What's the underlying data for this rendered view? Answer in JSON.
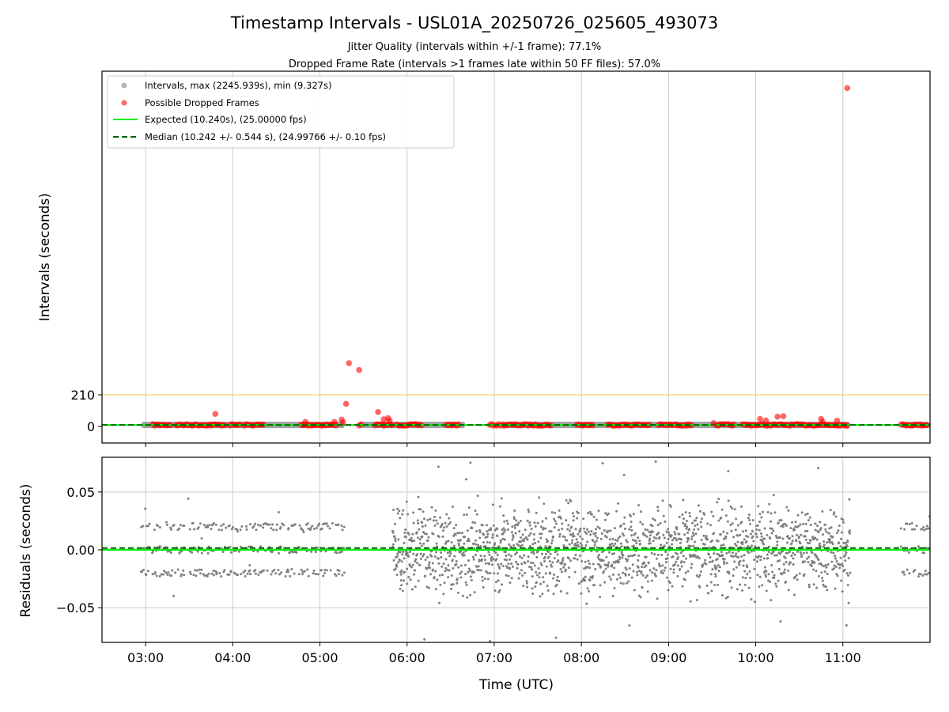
{
  "chart_data": [
    {
      "type": "scatter",
      "panel": "intervals",
      "title": "Timestamp Intervals - USL01A_20250726_025605_493073",
      "subtitles": [
        "Jitter Quality (intervals within +/-1 frame): 77.1%",
        "Dropped Frame Rate (intervals >1 frames late within 50 FF files): 57.0%"
      ],
      "xlabel": "",
      "ylabel": "Intervals (seconds)",
      "x_range": [
        "02:30",
        "12:00"
      ],
      "ylim": [
        -110,
        2358
      ],
      "yticks": [
        0,
        210
      ],
      "ytick_labels": [
        "0",
        "210"
      ],
      "xticks": [
        "03:00",
        "04:00",
        "05:00",
        "06:00",
        "07:00",
        "08:00",
        "09:00",
        "10:00",
        "11:00"
      ],
      "grid": "x",
      "threshold_line": {
        "y": 210,
        "color": "#f5d27a"
      },
      "legend_position": "upper left",
      "legend": [
        {
          "label": "Intervals, max (2245.939s), min (9.327s)",
          "marker": "circle",
          "color": "#808080"
        },
        {
          "label": "Possible Dropped Frames",
          "marker": "circle",
          "color": "#ff0000"
        },
        {
          "label": "Expected (10.240s), (25.00000 fps)",
          "marker": "solid-line",
          "color": "#00ee00"
        },
        {
          "label": "Median (10.242 +/- 0.544 s), (24.99766 +/- 0.10 fps)",
          "marker": "dashed-line",
          "color": "#006400"
        }
      ],
      "expected": 10.24,
      "median": 10.242,
      "interval_segments": [
        [
          "02:57",
          "05:17"
        ],
        [
          "05:27",
          "06:40"
        ],
        [
          "07:05",
          "11:05"
        ],
        [
          "11:40",
          "12:00"
        ]
      ],
      "dropped_frame_points": [
        {
          "x": "11:03",
          "y": 2245.9
        },
        {
          "x": "05:20",
          "y": 420
        },
        {
          "x": "05:27",
          "y": 375
        },
        {
          "x": "05:18",
          "y": 150
        },
        {
          "x": "05:40",
          "y": 96
        },
        {
          "x": "03:48",
          "y": 83
        },
        {
          "x": "05:44",
          "y": 48
        },
        {
          "x": "05:47",
          "y": 55
        },
        {
          "x": "05:48",
          "y": 38
        },
        {
          "x": "10:19",
          "y": 68
        },
        {
          "x": "10:15",
          "y": 65
        },
        {
          "x": "10:45",
          "y": 50
        },
        {
          "x": "10:56",
          "y": 38
        },
        {
          "x": "10:03",
          "y": 50
        },
        {
          "x": "10:07",
          "y": 40
        },
        {
          "x": "04:50",
          "y": 30
        },
        {
          "x": "05:15",
          "y": 45
        },
        {
          "x": "05:10",
          "y": 30
        },
        {
          "x": "05:16",
          "y": 28
        },
        {
          "x": "09:31",
          "y": 22
        },
        {
          "x": "10:46",
          "y": 30
        }
      ],
      "dropped_frame_bands": [
        [
          "03:05",
          "03:17"
        ],
        [
          "03:21",
          "03:45"
        ],
        [
          "03:45",
          "03:55"
        ],
        [
          "03:58",
          "04:06"
        ],
        [
          "04:08",
          "04:22"
        ],
        [
          "04:47",
          "05:12"
        ],
        [
          "05:27",
          "05:29"
        ],
        [
          "05:38",
          "05:50"
        ],
        [
          "05:53",
          "06:10"
        ],
        [
          "06:27",
          "06:36"
        ],
        [
          "06:57",
          "07:40"
        ],
        [
          "07:57",
          "08:08"
        ],
        [
          "08:18",
          "08:47"
        ],
        [
          "08:53",
          "09:17"
        ],
        [
          "09:33",
          "09:46"
        ],
        [
          "09:51",
          "11:04"
        ],
        [
          "11:40",
          "11:59"
        ]
      ]
    },
    {
      "type": "scatter",
      "panel": "residuals",
      "xlabel": "Time (UTC)",
      "ylabel": "Residuals (seconds)",
      "x_range": [
        "02:30",
        "12:00"
      ],
      "ylim": [
        -0.08,
        0.08
      ],
      "yticks": [
        -0.05,
        0.0,
        0.05
      ],
      "ytick_labels": [
        "−0.05",
        "0.00",
        "0.05"
      ],
      "xticks": [
        "03:00",
        "04:00",
        "05:00",
        "06:00",
        "07:00",
        "08:00",
        "09:00",
        "10:00",
        "11:00"
      ],
      "grid": "both",
      "expected_residual": 0.0,
      "median_residual": 0.0015,
      "clusters": [
        {
          "x_range": [
            "02:57",
            "05:17"
          ],
          "levels": [
            0.02,
            0.0,
            -0.02
          ],
          "spread": 0.003
        },
        {
          "x_range": [
            "05:50",
            "11:05"
          ],
          "levels": [
            0.0
          ],
          "spread": 0.03
        },
        {
          "x_range": [
            "11:40",
            "12:00"
          ],
          "levels": [
            0.02,
            0.0,
            -0.02
          ],
          "spread": 0.003
        }
      ]
    }
  ],
  "colors": {
    "points": "#808080",
    "dropped": "#ff0000",
    "expected": "#00ee00",
    "median": "#006400",
    "threshold": "#f5d27a",
    "grid": "#cccccc"
  }
}
